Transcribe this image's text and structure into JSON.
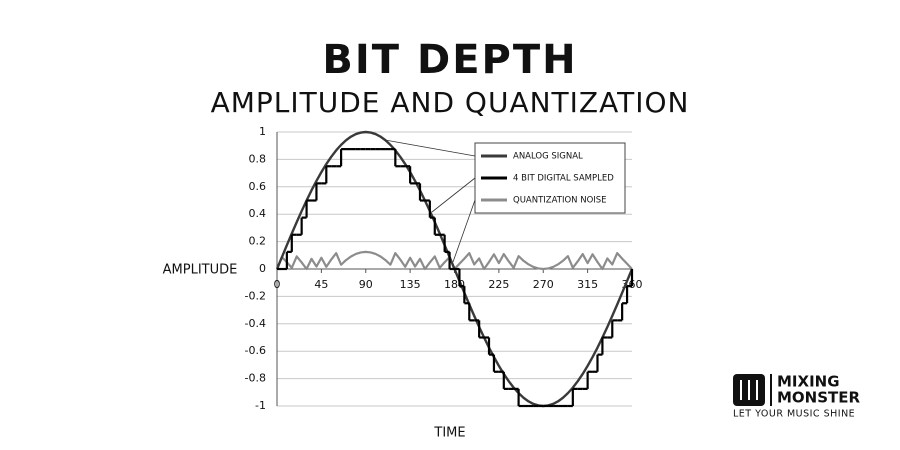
{
  "chart_data": {
    "type": "line",
    "title": "BIT DEPTH",
    "subtitle": "AMPLITUDE AND QUANTIZATION",
    "y_label": "AMPLITUDE",
    "x_label": "TIME",
    "x": [
      0,
      5,
      10,
      15,
      20,
      25,
      30,
      35,
      40,
      45,
      50,
      55,
      60,
      65,
      70,
      75,
      80,
      85,
      90,
      95,
      100,
      105,
      110,
      115,
      120,
      125,
      130,
      135,
      140,
      145,
      150,
      155,
      160,
      165,
      170,
      175,
      180,
      185,
      190,
      195,
      200,
      205,
      210,
      215,
      220,
      225,
      230,
      235,
      240,
      245,
      250,
      255,
      260,
      265,
      270,
      275,
      280,
      285,
      290,
      295,
      300,
      305,
      310,
      315,
      320,
      325,
      330,
      335,
      340,
      345,
      350,
      355,
      360
    ],
    "series": [
      {
        "name": "ANALOG SIGNAL",
        "color": "#3a3a3a",
        "values": [
          0,
          0.087,
          0.174,
          0.259,
          0.342,
          0.423,
          0.5,
          0.574,
          0.643,
          0.707,
          0.766,
          0.819,
          0.866,
          0.906,
          0.94,
          0.966,
          0.985,
          0.996,
          1,
          0.996,
          0.985,
          0.966,
          0.94,
          0.906,
          0.866,
          0.819,
          0.766,
          0.707,
          0.643,
          0.574,
          0.5,
          0.423,
          0.342,
          0.259,
          0.174,
          0.087,
          0,
          -0.087,
          -0.174,
          -0.259,
          -0.342,
          -0.423,
          -0.5,
          -0.574,
          -0.643,
          -0.707,
          -0.766,
          -0.819,
          -0.866,
          -0.906,
          -0.94,
          -0.966,
          -0.985,
          -0.996,
          -1,
          -0.996,
          -0.985,
          -0.966,
          -0.94,
          -0.906,
          -0.866,
          -0.819,
          -0.766,
          -0.707,
          -0.643,
          -0.574,
          -0.5,
          -0.423,
          -0.342,
          -0.259,
          -0.174,
          -0.087,
          0
        ]
      },
      {
        "name": "4 BIT DIGITAL SAMPLED",
        "color": "#000000",
        "step": true,
        "values": [
          0,
          0,
          0.125,
          0.25,
          0.25,
          0.375,
          0.5,
          0.5,
          0.625,
          0.625,
          0.75,
          0.75,
          0.75,
          0.875,
          0.875,
          0.875,
          0.875,
          0.875,
          0.875,
          0.875,
          0.875,
          0.875,
          0.875,
          0.875,
          0.75,
          0.75,
          0.75,
          0.625,
          0.625,
          0.5,
          0.5,
          0.375,
          0.25,
          0.25,
          0.125,
          0,
          0,
          -0.125,
          -0.25,
          -0.375,
          -0.375,
          -0.5,
          -0.5,
          -0.625,
          -0.75,
          -0.75,
          -0.875,
          -0.875,
          -0.875,
          -1,
          -1,
          -1,
          -1,
          -1,
          -1,
          -1,
          -1,
          -1,
          -1,
          -1,
          -0.875,
          -0.875,
          -0.875,
          -0.75,
          -0.75,
          -0.625,
          -0.5,
          -0.5,
          -0.375,
          -0.375,
          -0.25,
          -0.125,
          0
        ]
      },
      {
        "name": "QUANTIZATION NOISE",
        "color": "#8c8c8c",
        "values": [
          0,
          0.087,
          0.049,
          0.009,
          0.092,
          0.048,
          0,
          0.074,
          0.018,
          0.082,
          0.016,
          0.069,
          0.116,
          0.031,
          0.065,
          0.091,
          0.11,
          0.121,
          0.125,
          0.121,
          0.11,
          0.091,
          0.065,
          0.031,
          0.116,
          0.069,
          0.016,
          0.082,
          0.018,
          0.074,
          0,
          0.048,
          0.092,
          0.009,
          0.049,
          0.087,
          0,
          0.038,
          0.076,
          0.116,
          0.033,
          0.077,
          0,
          0.051,
          0.107,
          0.043,
          0.109,
          0.056,
          0.009,
          0.094,
          0.06,
          0.034,
          0.015,
          0.004,
          0,
          0.004,
          0.015,
          0.034,
          0.06,
          0.094,
          0.009,
          0.056,
          0.109,
          0.043,
          0.107,
          0.051,
          0,
          0.077,
          0.033,
          0.116,
          0.076,
          0.038,
          0
        ]
      }
    ],
    "xlim": [
      0,
      360
    ],
    "xticks": [
      0,
      45,
      90,
      135,
      180,
      225,
      270,
      315,
      360
    ],
    "ylim": [
      -1,
      1
    ],
    "yticks": [
      1,
      0.8,
      0.6,
      0.4,
      0.2,
      0,
      -0.2,
      -0.4,
      -0.6,
      -0.8,
      -1
    ],
    "grid": true,
    "legend": "upper right"
  },
  "brand": {
    "name_line1": "MIXING",
    "name_line2": "MONSTER",
    "tagline": "LET YOUR MUSIC SHINE"
  }
}
